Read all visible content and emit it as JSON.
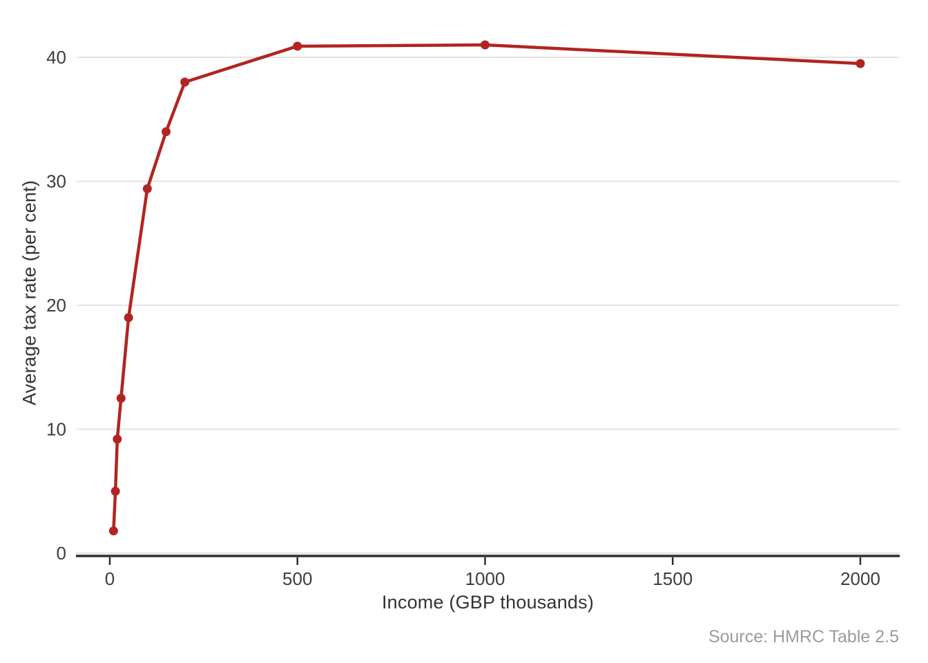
{
  "chart_data": {
    "type": "line",
    "title": "",
    "xlabel": "Income (GBP thousands)",
    "ylabel": "Average tax rate (per cent)",
    "source_note": "Source: HMRC Table 2.5",
    "x_ticks": [
      0,
      500,
      1000,
      1500,
      2000
    ],
    "y_ticks": [
      0,
      10,
      20,
      30,
      40
    ],
    "xlim": [
      -90,
      2105
    ],
    "ylim": [
      0,
      44.5
    ],
    "grid": "horizontal-only",
    "legend": "none",
    "colors": {
      "series": "#b22421",
      "gridline": "#e3e3e3",
      "axis_line": "#2f2f2f",
      "tick_label": "#3d3d3d",
      "axis_title": "#333333",
      "source_text": "#9b9b9b",
      "background": "#ffffff"
    },
    "series": [
      {
        "name": "Average tax rate",
        "color": "#b22421",
        "points": [
          {
            "x": 10,
            "y": 1.8
          },
          {
            "x": 15,
            "y": 5.0
          },
          {
            "x": 20,
            "y": 9.2
          },
          {
            "x": 30,
            "y": 12.5
          },
          {
            "x": 50,
            "y": 19.0
          },
          {
            "x": 100,
            "y": 29.4
          },
          {
            "x": 150,
            "y": 34.0
          },
          {
            "x": 200,
            "y": 38.0
          },
          {
            "x": 500,
            "y": 40.9
          },
          {
            "x": 1000,
            "y": 41.0
          },
          {
            "x": 2000,
            "y": 39.5
          }
        ]
      }
    ]
  }
}
